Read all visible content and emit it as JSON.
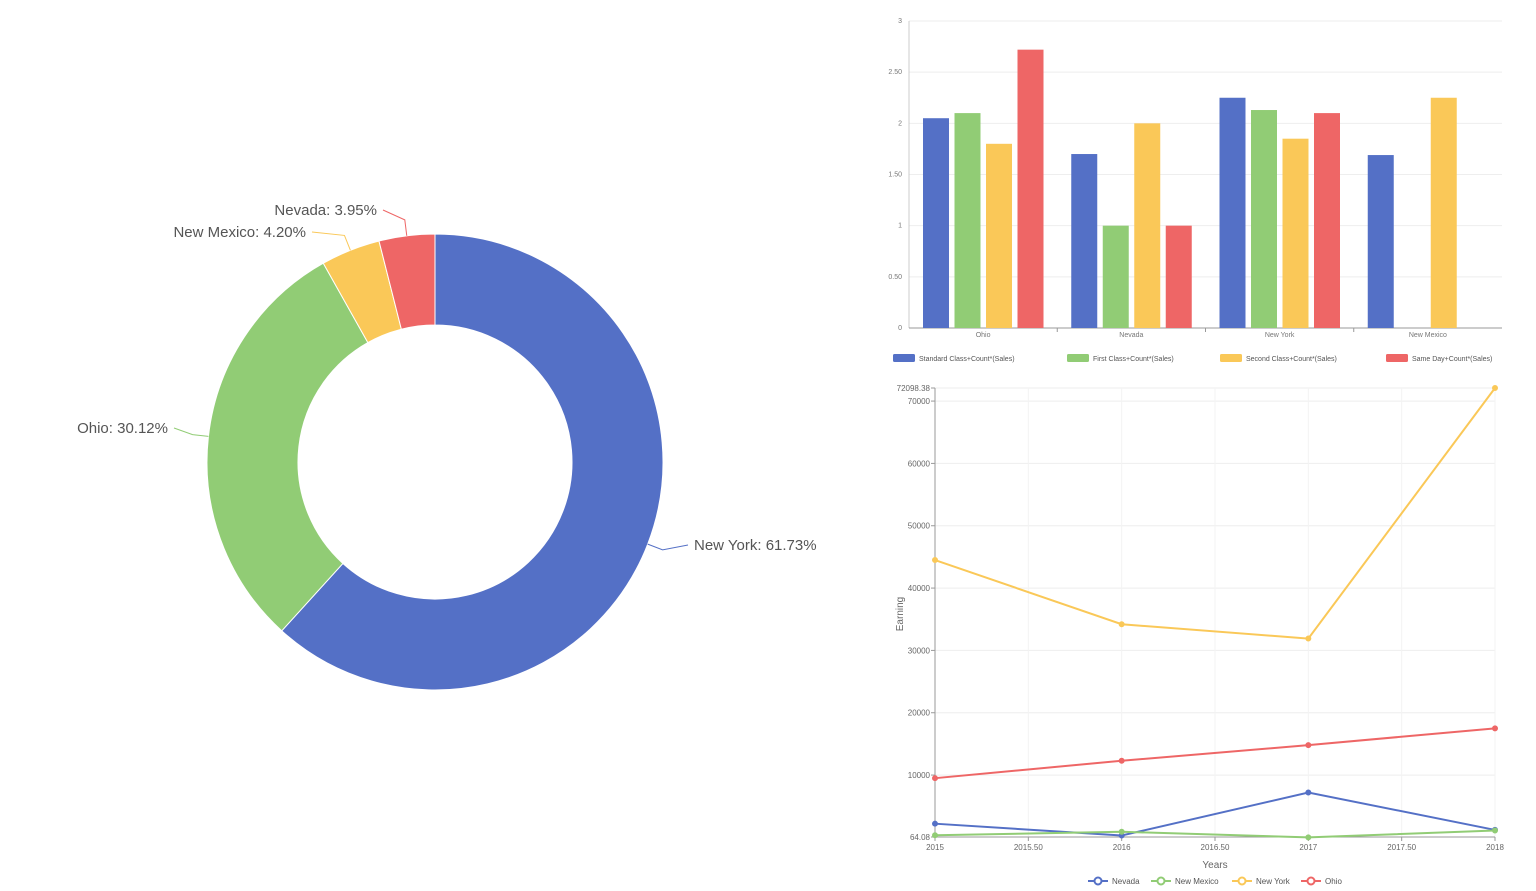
{
  "chart_data": [
    {
      "type": "pie",
      "donut": true,
      "categories": [
        "New York",
        "Ohio",
        "New Mexico",
        "Nevada"
      ],
      "values": [
        61.73,
        30.12,
        4.2,
        3.95
      ],
      "labels": [
        "New York: 61.73%",
        "Ohio: 30.12%",
        "New Mexico: 4.20%",
        "Nevada: 3.95%"
      ],
      "colors": [
        "#5470c6",
        "#91cc75",
        "#fac858",
        "#ee6666"
      ]
    },
    {
      "type": "bar",
      "categories": [
        "Ohio",
        "Nevada",
        "New York",
        "New Mexico"
      ],
      "series": [
        {
          "name": "Standard Class+Count*(Sales)",
          "values": [
            2.05,
            1.7,
            2.25,
            1.69
          ],
          "color": "#5470c6"
        },
        {
          "name": "First Class+Count*(Sales)",
          "values": [
            2.1,
            1.0,
            2.13,
            null
          ],
          "color": "#91cc75"
        },
        {
          "name": "Second Class+Count*(Sales)",
          "values": [
            1.8,
            2.0,
            1.85,
            2.25
          ],
          "color": "#fac858"
        },
        {
          "name": "Same Day+Count*(Sales)",
          "values": [
            2.72,
            1.0,
            2.1,
            null
          ],
          "color": "#ee6666"
        }
      ],
      "ylim": [
        0,
        3
      ],
      "yticks": [
        0,
        0.5,
        1,
        1.5,
        2,
        2.5,
        3
      ],
      "ytick_labels": [
        "0",
        "0.50",
        "1",
        "1.50",
        "2",
        "2.50",
        "3"
      ],
      "legend_position": "bottom"
    },
    {
      "type": "line",
      "x": [
        2015,
        2016,
        2017,
        2018
      ],
      "xticks": [
        2015,
        2015.5,
        2016,
        2016.5,
        2017,
        2017.5,
        2018
      ],
      "xtick_labels": [
        "2015",
        "2015.50",
        "2016",
        "2016.50",
        "2017",
        "2017.50",
        "2018"
      ],
      "xlabel": "Years",
      "ylabel": "Earning",
      "ylim": [
        64.08,
        72098.38
      ],
      "yticks": [
        64.08,
        10000,
        20000,
        30000,
        40000,
        50000,
        60000,
        70000,
        72098.38
      ],
      "ytick_labels": [
        "64.08",
        "10000",
        "20000",
        "30000",
        "40000",
        "50000",
        "60000",
        "70000",
        "72098.38"
      ],
      "series": [
        {
          "name": "Nevada",
          "values": [
            2200,
            300,
            7200,
            1200
          ],
          "color": "#5470c6"
        },
        {
          "name": "New Mexico",
          "values": [
            350,
            900,
            0,
            1100
          ],
          "color": "#91cc75"
        },
        {
          "name": "New York",
          "values": [
            44500,
            34200,
            31900,
            72098.38
          ],
          "color": "#fac858"
        },
        {
          "name": "Ohio",
          "values": [
            9500,
            12300,
            14800,
            17500
          ],
          "color": "#ee6666"
        }
      ],
      "legend_position": "bottom"
    }
  ]
}
